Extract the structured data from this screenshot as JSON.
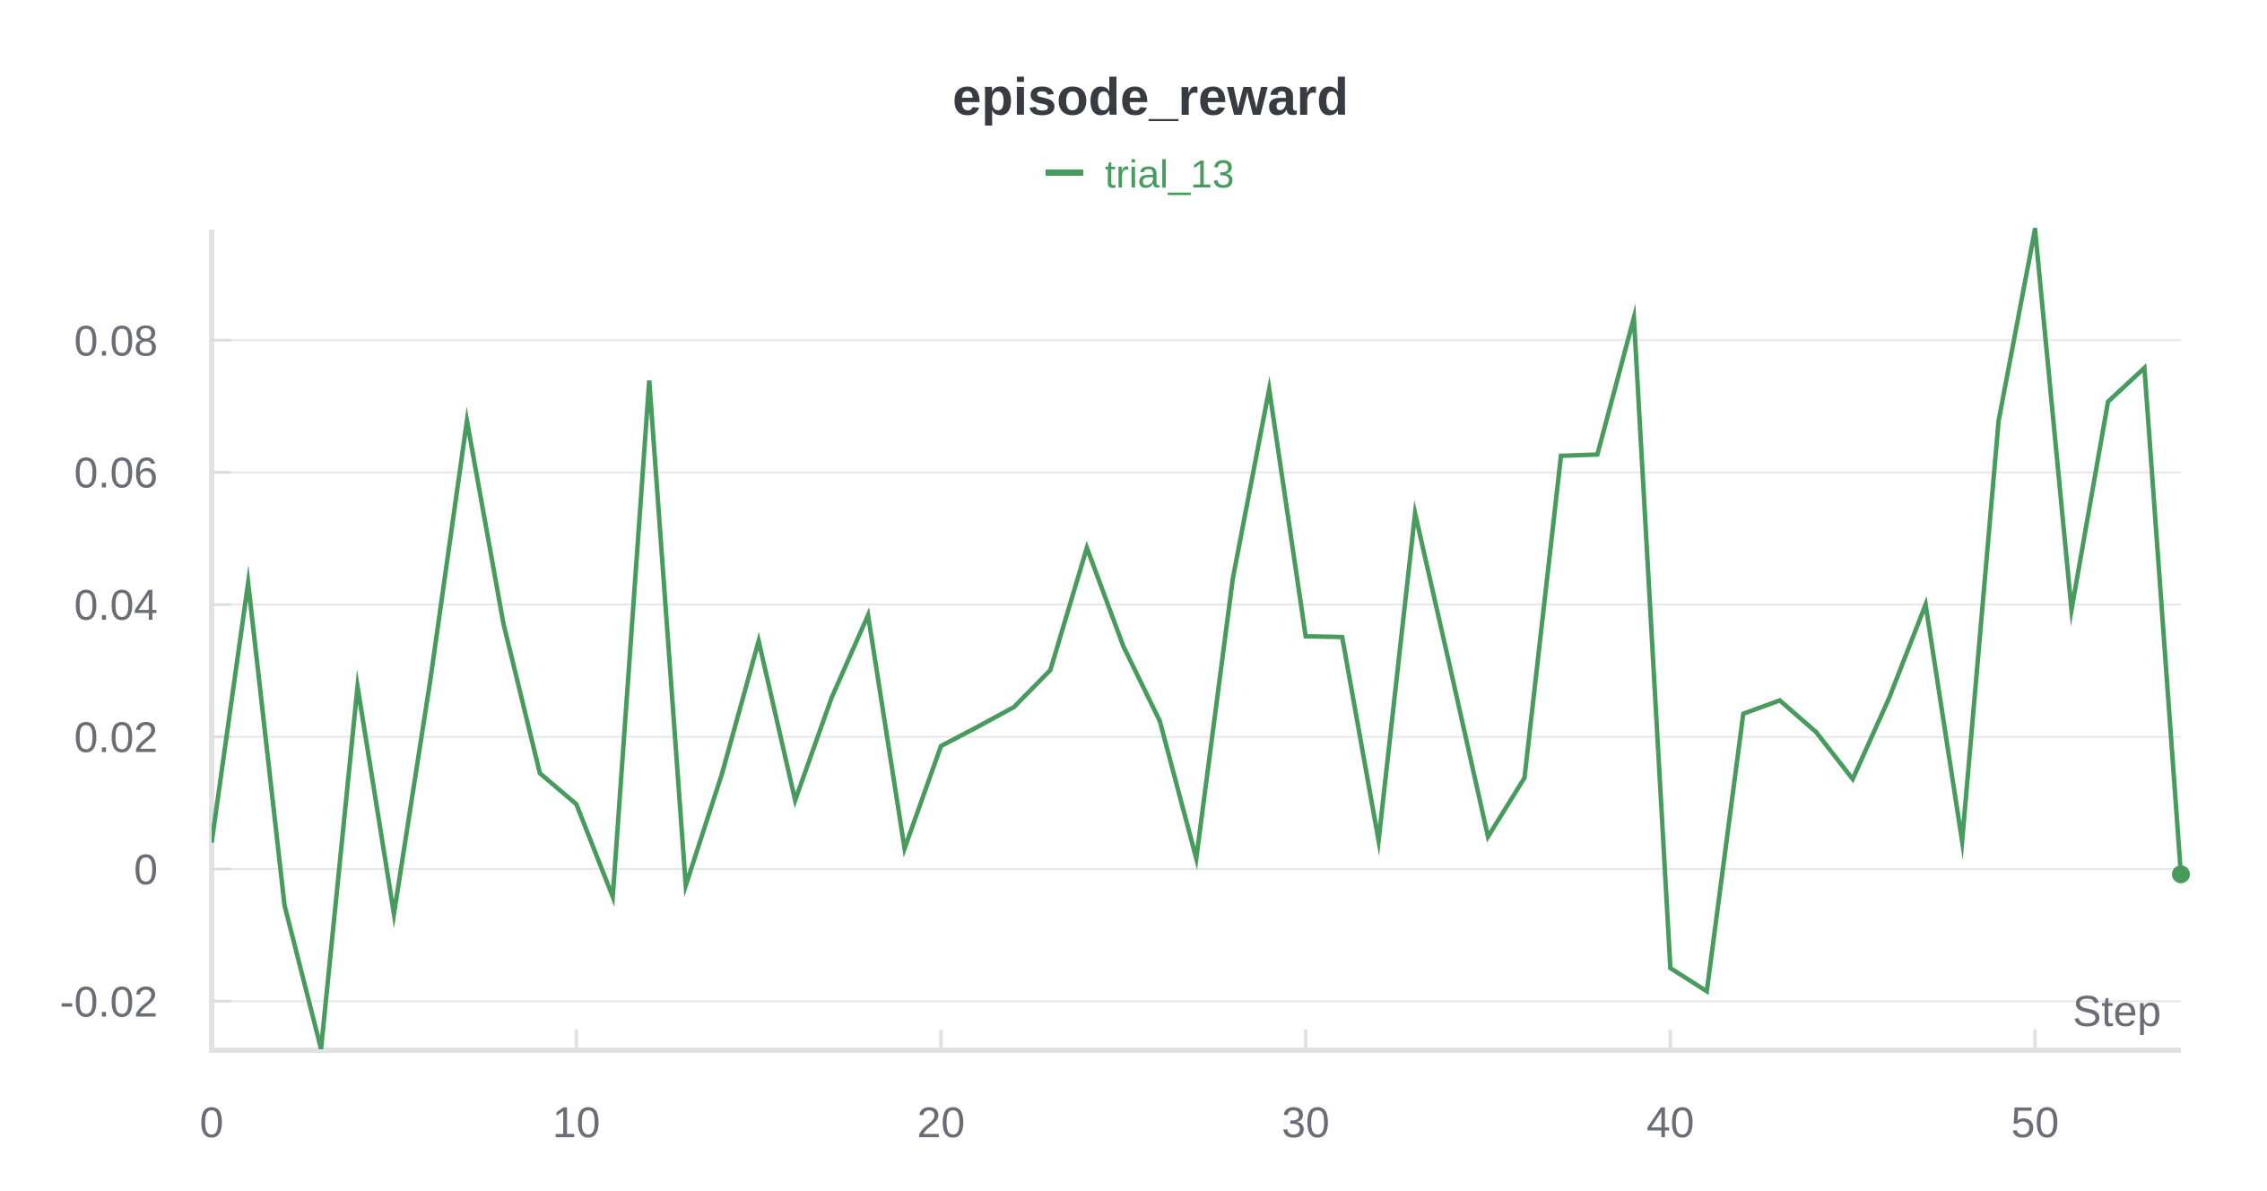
{
  "chart_data": {
    "type": "line",
    "title": "episode_reward",
    "xlabel": "Step",
    "ylabel": "",
    "xlim": [
      0,
      54
    ],
    "ylim": [
      -0.027,
      0.097
    ],
    "x_ticks": [
      0,
      10,
      20,
      30,
      40,
      50
    ],
    "x_tick_labels": [
      "0",
      "10",
      "20",
      "30",
      "40",
      "50"
    ],
    "y_ticks": [
      -0.02,
      0,
      0.02,
      0.04,
      0.06,
      0.08
    ],
    "y_tick_labels": [
      "-0.02",
      "0",
      "0.02",
      "0.04",
      "0.06",
      "0.08"
    ],
    "grid": "horizontal",
    "legend_position": "top-center",
    "series": [
      {
        "name": "trial_13",
        "color": "#479b5c",
        "x": [
          0,
          1,
          2,
          3,
          4,
          5,
          6,
          7,
          8,
          9,
          10,
          11,
          12,
          13,
          14,
          15,
          16,
          17,
          18,
          19,
          20,
          21,
          22,
          23,
          24,
          25,
          26,
          27,
          28,
          29,
          30,
          31,
          32,
          33,
          34,
          35,
          36,
          37,
          38,
          39,
          40,
          41,
          42,
          43,
          44,
          45,
          46,
          47,
          48,
          49,
          50,
          51,
          52,
          53,
          54
        ],
        "y": [
          0.004,
          0.0433,
          -0.0055,
          -0.0272,
          0.0276,
          -0.0068,
          0.0287,
          0.0678,
          0.0372,
          0.0145,
          0.0098,
          -0.0042,
          0.0739,
          -0.0025,
          0.0145,
          0.0345,
          0.0104,
          0.0259,
          0.0384,
          0.0031,
          0.0186,
          0.0215,
          0.0245,
          0.0301,
          0.0486,
          0.0337,
          0.0224,
          0.0016,
          0.0439,
          0.0726,
          0.0352,
          0.0351,
          0.0043,
          0.0538,
          0.0295,
          0.0049,
          0.0138,
          0.0625,
          0.0627,
          0.0834,
          -0.015,
          -0.0185,
          0.0235,
          0.0255,
          0.0207,
          0.0136,
          0.0259,
          0.04,
          0.0042,
          0.0678,
          0.0968,
          0.0392,
          0.0707,
          0.0758,
          -0.0008
        ]
      }
    ]
  }
}
